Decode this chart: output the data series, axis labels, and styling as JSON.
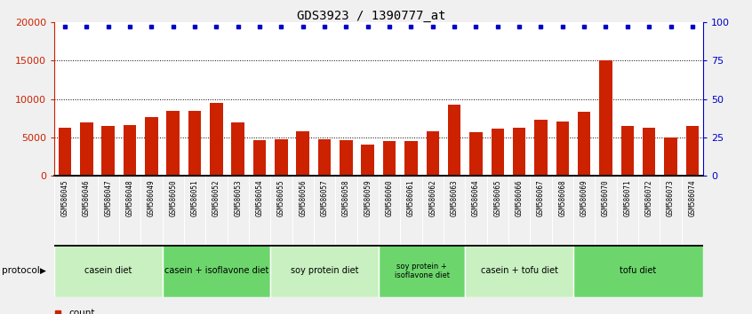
{
  "title": "GDS3923 / 1390777_at",
  "samples": [
    "GSM586045",
    "GSM586046",
    "GSM586047",
    "GSM586048",
    "GSM586049",
    "GSM586050",
    "GSM586051",
    "GSM586052",
    "GSM586053",
    "GSM586054",
    "GSM586055",
    "GSM586056",
    "GSM586057",
    "GSM586058",
    "GSM586059",
    "GSM586060",
    "GSM586061",
    "GSM586062",
    "GSM586063",
    "GSM586064",
    "GSM586065",
    "GSM586066",
    "GSM586067",
    "GSM586068",
    "GSM586069",
    "GSM586070",
    "GSM586071",
    "GSM586072",
    "GSM586073",
    "GSM586074"
  ],
  "counts": [
    6300,
    6900,
    6500,
    6600,
    7600,
    8500,
    8500,
    9500,
    6900,
    4600,
    4800,
    5800,
    4700,
    4600,
    4100,
    4500,
    4500,
    5800,
    9300,
    5700,
    6100,
    6200,
    7300,
    7100,
    8300,
    15000,
    6500,
    6300,
    5000,
    6500
  ],
  "percentile_ranks": [
    97,
    97,
    97,
    97,
    97,
    97,
    97,
    97,
    97,
    97,
    97,
    97,
    97,
    97,
    97,
    97,
    97,
    97,
    97,
    97,
    97,
    97,
    97,
    97,
    97,
    97,
    97,
    97,
    97,
    97
  ],
  "protocols": [
    {
      "label": "casein diet",
      "start": 0,
      "end": 5
    },
    {
      "label": "casein + isoflavone diet",
      "start": 5,
      "end": 10
    },
    {
      "label": "soy protein diet",
      "start": 10,
      "end": 15
    },
    {
      "label": "soy protein +\nisoflavone diet",
      "start": 15,
      "end": 19
    },
    {
      "label": "casein + tofu diet",
      "start": 19,
      "end": 24
    },
    {
      "label": "tofu diet",
      "start": 24,
      "end": 30
    }
  ],
  "protocol_colors": [
    "#c8f0c0",
    "#6cd66c",
    "#c8f0c0",
    "#6cd66c",
    "#c8f0c0",
    "#6cd66c"
  ],
  "bar_color": "#cc2200",
  "dot_color": "#0000cc",
  "ylim_left": [
    0,
    20000
  ],
  "ylim_right": [
    0,
    100
  ],
  "yticks_left": [
    0,
    5000,
    10000,
    15000,
    20000
  ],
  "yticks_right": [
    0,
    25,
    50,
    75,
    100
  ],
  "bg_color": "#f0f0f0",
  "plot_bg": "#ffffff",
  "xtick_bg": "#d0d0d0"
}
